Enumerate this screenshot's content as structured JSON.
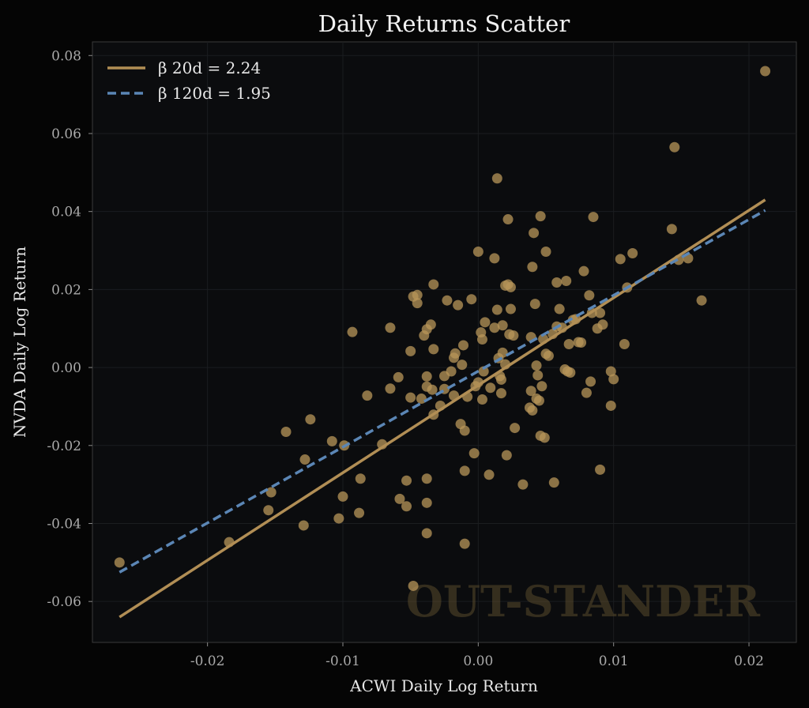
{
  "chart_data": {
    "type": "scatter",
    "title": "Daily Returns Scatter",
    "xlabel": "ACWI Daily Log Return",
    "ylabel": "NVDA Daily Log Return",
    "xlim": [
      -0.0285,
      0.0235
    ],
    "ylim": [
      -0.0705,
      0.0835
    ],
    "xticks": [
      -0.02,
      -0.01,
      0.0,
      0.01,
      0.02
    ],
    "xtick_labels": [
      "-0.02",
      "-0.01",
      "0.00",
      "0.01",
      "0.02"
    ],
    "yticks": [
      -0.06,
      -0.04,
      -0.02,
      0.0,
      0.02,
      0.04,
      0.06,
      0.08
    ],
    "ytick_labels": [
      "-0.06",
      "-0.04",
      "-0.02",
      "0.00",
      "0.02",
      "0.04",
      "0.06",
      "0.08"
    ],
    "grid": true,
    "legend_position": "top-left",
    "watermark": "OUT-STANDER",
    "colors": {
      "background": "#050505",
      "plot_background": "#0b0c0e",
      "points": "#b8955a",
      "beta_20d": "#b18e55",
      "beta_120d": "#5b86b5"
    },
    "fit_lines": [
      {
        "name": "β 20d = 2.24",
        "style": "solid",
        "color": "#b18e55",
        "x": [
          -0.0265,
          0.0212
        ],
        "y": [
          -0.064,
          0.043
        ]
      },
      {
        "name": "β 120d = 1.95",
        "style": "dashed",
        "color": "#5b86b5",
        "x": [
          -0.0265,
          0.0212
        ],
        "y": [
          -0.0525,
          0.0403
        ]
      }
    ],
    "points": [
      [
        -0.0265,
        -0.05
      ],
      [
        -0.0184,
        -0.0448
      ],
      [
        -0.0155,
        -0.0366
      ],
      [
        -0.0153,
        -0.032
      ],
      [
        -0.0142,
        -0.0165
      ],
      [
        -0.0129,
        -0.0405
      ],
      [
        -0.0128,
        -0.0236
      ],
      [
        -0.0124,
        -0.0133
      ],
      [
        -0.0108,
        -0.0189
      ],
      [
        -0.0103,
        -0.0387
      ],
      [
        -0.01,
        -0.0331
      ],
      [
        -0.0099,
        -0.02
      ],
      [
        -0.0093,
        0.0091
      ],
      [
        -0.0088,
        -0.0373
      ],
      [
        -0.0087,
        -0.0285
      ],
      [
        -0.0082,
        -0.0072
      ],
      [
        -0.0071,
        -0.0197
      ],
      [
        -0.0065,
        0.0102
      ],
      [
        -0.0065,
        -0.0054
      ],
      [
        -0.0059,
        -0.0025
      ],
      [
        -0.0058,
        -0.0337
      ],
      [
        -0.0053,
        -0.029
      ],
      [
        -0.0053,
        -0.0356
      ],
      [
        -0.005,
        0.0042
      ],
      [
        -0.005,
        -0.0077
      ],
      [
        -0.0048,
        0.0182
      ],
      [
        -0.0045,
        0.0186
      ],
      [
        -0.0045,
        0.0165
      ],
      [
        -0.0048,
        -0.056
      ],
      [
        -0.0042,
        -0.008
      ],
      [
        -0.004,
        0.0082
      ],
      [
        -0.0038,
        -0.0049
      ],
      [
        -0.0038,
        0.0098
      ],
      [
        -0.0038,
        -0.0023
      ],
      [
        -0.0038,
        -0.0425
      ],
      [
        -0.0038,
        -0.0285
      ],
      [
        -0.0038,
        -0.0347
      ],
      [
        -0.0035,
        0.011
      ],
      [
        -0.0033,
        -0.0121
      ],
      [
        -0.0034,
        -0.0057
      ],
      [
        -0.0033,
        0.0047
      ],
      [
        -0.0033,
        0.0213
      ],
      [
        -0.0028,
        -0.0098
      ],
      [
        -0.0025,
        -0.0055
      ],
      [
        -0.0025,
        -0.0022
      ],
      [
        -0.0023,
        0.0172
      ],
      [
        -0.002,
        -0.001
      ],
      [
        -0.0018,
        0.0025
      ],
      [
        -0.0018,
        -0.0072
      ],
      [
        -0.0017,
        0.0036
      ],
      [
        -0.0015,
        0.016
      ],
      [
        -0.0013,
        -0.0145
      ],
      [
        -0.0012,
        0.0007
      ],
      [
        -0.0011,
        0.0057
      ],
      [
        -0.001,
        -0.0162
      ],
      [
        -0.001,
        -0.0265
      ],
      [
        -0.001,
        -0.0452
      ],
      [
        -0.0008,
        -0.0075
      ],
      [
        -0.0005,
        0.0175
      ],
      [
        -0.0003,
        -0.022
      ],
      [
        -0.0002,
        -0.0048
      ],
      [
        0.0,
        0.0297
      ],
      [
        0.0,
        -0.0038
      ],
      [
        0.0002,
        0.009
      ],
      [
        0.0003,
        0.0072
      ],
      [
        0.0003,
        -0.0082
      ],
      [
        0.0004,
        -0.001
      ],
      [
        0.0005,
        0.0116
      ],
      [
        0.0008,
        -0.0275
      ],
      [
        0.0009,
        -0.0052
      ],
      [
        0.0012,
        0.028
      ],
      [
        0.0012,
        0.0102
      ],
      [
        0.0014,
        0.0485
      ],
      [
        0.0014,
        0.0148
      ],
      [
        0.0015,
        0.0024
      ],
      [
        0.0016,
        -0.0022
      ],
      [
        0.0017,
        -0.0066
      ],
      [
        0.0017,
        -0.0031
      ],
      [
        0.0018,
        0.0108
      ],
      [
        0.0018,
        0.0038
      ],
      [
        0.002,
        0.021
      ],
      [
        0.002,
        0.0008
      ],
      [
        0.0021,
        -0.0225
      ],
      [
        0.0022,
        0.0213
      ],
      [
        0.0022,
        0.038
      ],
      [
        0.0023,
        0.0085
      ],
      [
        0.0024,
        0.0206
      ],
      [
        0.0024,
        0.015
      ],
      [
        0.0026,
        0.0082
      ],
      [
        0.0027,
        -0.0155
      ],
      [
        0.0033,
        -0.03
      ],
      [
        0.0038,
        -0.0103
      ],
      [
        0.0039,
        -0.006
      ],
      [
        0.0039,
        0.0078
      ],
      [
        0.004,
        -0.011
      ],
      [
        0.004,
        0.0258
      ],
      [
        0.0041,
        0.0345
      ],
      [
        0.0042,
        0.0163
      ],
      [
        0.0043,
        0.0005
      ],
      [
        0.0043,
        -0.008
      ],
      [
        0.0044,
        -0.002
      ],
      [
        0.0045,
        -0.0085
      ],
      [
        0.0046,
        -0.0175
      ],
      [
        0.0046,
        0.0388
      ],
      [
        0.0047,
        -0.0048
      ],
      [
        0.0048,
        0.0073
      ],
      [
        0.0049,
        -0.018
      ],
      [
        0.005,
        0.0297
      ],
      [
        0.005,
        0.0035
      ],
      [
        0.0052,
        0.003
      ],
      [
        0.0055,
        0.0086
      ],
      [
        0.0056,
        -0.0295
      ],
      [
        0.0058,
        0.0105
      ],
      [
        0.0058,
        0.0218
      ],
      [
        0.006,
        0.015
      ],
      [
        0.0062,
        0.0102
      ],
      [
        0.0064,
        -0.0005
      ],
      [
        0.0065,
        0.0222
      ],
      [
        0.0066,
        -0.001
      ],
      [
        0.0067,
        0.006
      ],
      [
        0.0068,
        -0.0013
      ],
      [
        0.007,
        0.0122
      ],
      [
        0.0072,
        0.0124
      ],
      [
        0.0074,
        0.0065
      ],
      [
        0.0076,
        0.0064
      ],
      [
        0.0078,
        0.0247
      ],
      [
        0.008,
        -0.0065
      ],
      [
        0.0082,
        0.0185
      ],
      [
        0.0083,
        -0.0036
      ],
      [
        0.0084,
        0.014
      ],
      [
        0.0085,
        0.0386
      ],
      [
        0.0088,
        0.01
      ],
      [
        0.009,
        0.014
      ],
      [
        0.009,
        -0.0262
      ],
      [
        0.0092,
        0.011
      ],
      [
        0.0098,
        -0.001
      ],
      [
        0.0098,
        -0.0098
      ],
      [
        0.01,
        -0.003
      ],
      [
        0.0105,
        0.0278
      ],
      [
        0.0108,
        0.006
      ],
      [
        0.011,
        0.0205
      ],
      [
        0.0114,
        0.0293
      ],
      [
        0.0143,
        0.0355
      ],
      [
        0.0145,
        0.0565
      ],
      [
        0.0148,
        0.0276
      ],
      [
        0.0155,
        0.028
      ],
      [
        0.0165,
        0.0172
      ],
      [
        0.0212,
        0.076
      ]
    ]
  }
}
